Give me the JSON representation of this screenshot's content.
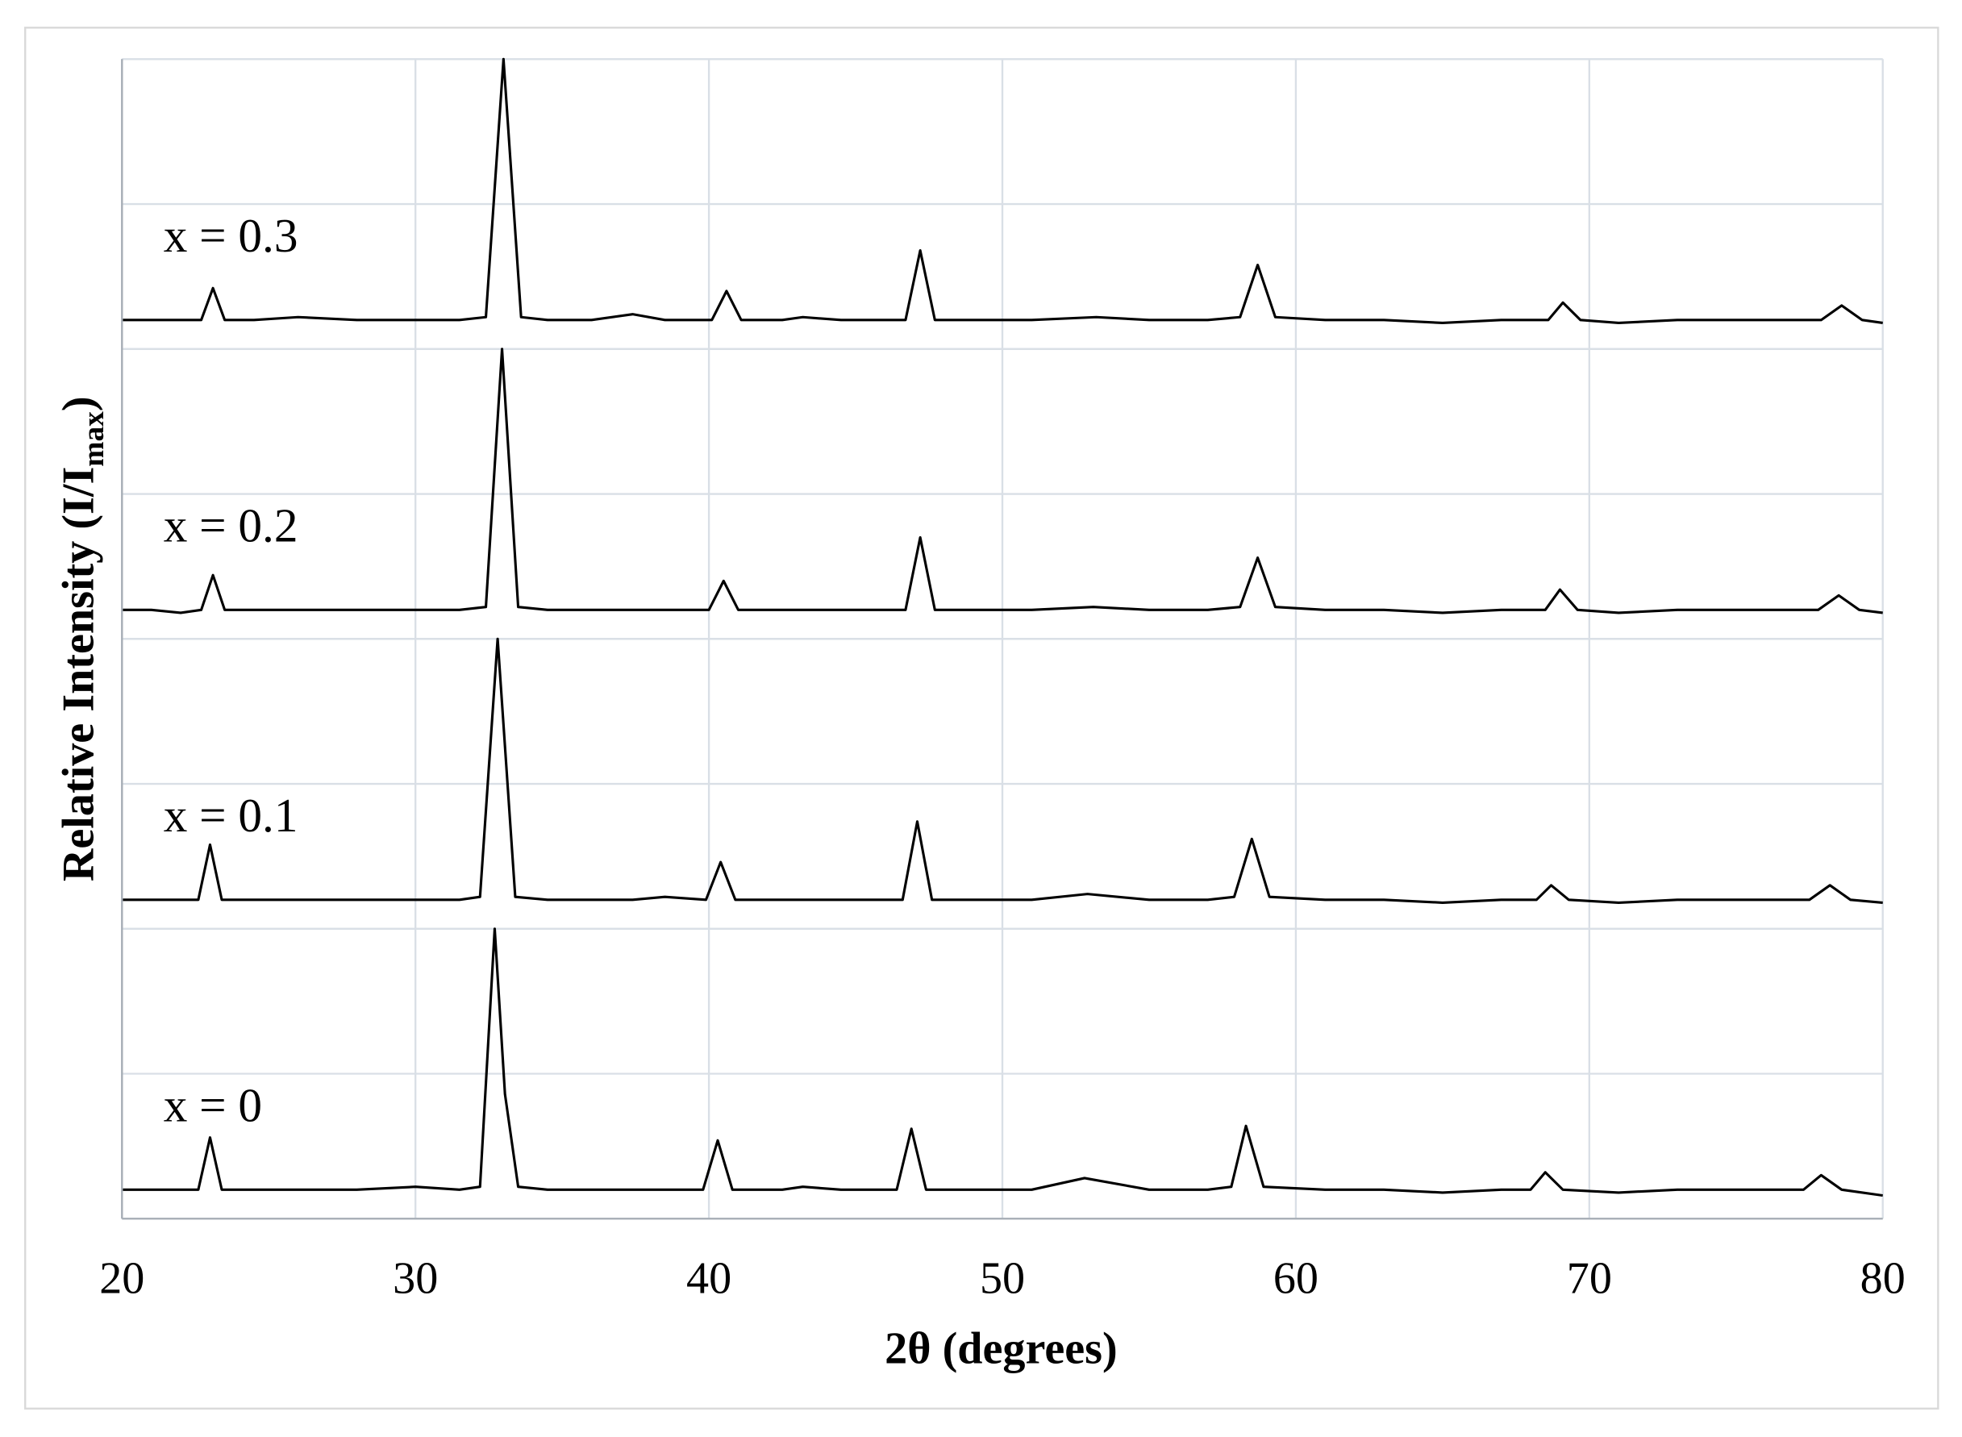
{
  "chart_data": [
    {
      "type": "line",
      "annotation": "x = 0.3",
      "color": "#000000",
      "xlim": [
        20,
        80
      ],
      "ylim": [
        0,
        1
      ],
      "yticks": [
        0,
        0.5,
        1
      ],
      "grid": true,
      "x": [
        20,
        21,
        22,
        22.7,
        23.1,
        23.5,
        24.5,
        26,
        28,
        30,
        31.5,
        32.4,
        33.0,
        33.6,
        34.5,
        36,
        37.4,
        38.5,
        40.1,
        40.6,
        41.1,
        42.5,
        43.2,
        44.5,
        46.7,
        47.2,
        47.7,
        49,
        51,
        53.2,
        55,
        57,
        58.1,
        58.7,
        59.3,
        61,
        63,
        65,
        67,
        68.6,
        69.1,
        69.7,
        71,
        73,
        75,
        77.9,
        78.6,
        79.3,
        80
      ],
      "values": [
        0.1,
        0.1,
        0.1,
        0.1,
        0.21,
        0.1,
        0.1,
        0.11,
        0.1,
        0.1,
        0.1,
        0.11,
        1.0,
        0.11,
        0.1,
        0.1,
        0.12,
        0.1,
        0.1,
        0.2,
        0.1,
        0.1,
        0.11,
        0.1,
        0.1,
        0.34,
        0.1,
        0.1,
        0.1,
        0.11,
        0.1,
        0.1,
        0.11,
        0.29,
        0.11,
        0.1,
        0.1,
        0.09,
        0.1,
        0.1,
        0.16,
        0.1,
        0.09,
        0.1,
        0.1,
        0.1,
        0.15,
        0.1,
        0.09
      ]
    },
    {
      "type": "line",
      "annotation": "x = 0.2",
      "color": "#000000",
      "xlim": [
        20,
        80
      ],
      "ylim": [
        0,
        1
      ],
      "yticks": [
        0,
        0.5,
        1
      ],
      "grid": true,
      "x": [
        20,
        21,
        22,
        22.7,
        23.1,
        23.5,
        24.5,
        26,
        28,
        30,
        31.5,
        32.4,
        32.95,
        33.5,
        34.5,
        36,
        37.4,
        38.5,
        40.0,
        40.5,
        41.0,
        42.5,
        43.2,
        44.5,
        46.7,
        47.2,
        47.7,
        49,
        51,
        53.1,
        55,
        57,
        58.1,
        58.7,
        59.3,
        61,
        63,
        65,
        67,
        68.5,
        69.0,
        69.6,
        71,
        73,
        75,
        77.8,
        78.5,
        79.2,
        80
      ],
      "values": [
        0.1,
        0.1,
        0.09,
        0.1,
        0.22,
        0.1,
        0.1,
        0.1,
        0.1,
        0.1,
        0.1,
        0.11,
        1.0,
        0.11,
        0.1,
        0.1,
        0.1,
        0.1,
        0.1,
        0.2,
        0.1,
        0.1,
        0.1,
        0.1,
        0.1,
        0.35,
        0.1,
        0.1,
        0.1,
        0.11,
        0.1,
        0.1,
        0.11,
        0.28,
        0.11,
        0.1,
        0.1,
        0.09,
        0.1,
        0.1,
        0.17,
        0.1,
        0.09,
        0.1,
        0.1,
        0.1,
        0.15,
        0.1,
        0.09
      ]
    },
    {
      "type": "line",
      "annotation": "x = 0.1",
      "color": "#000000",
      "xlim": [
        20,
        80
      ],
      "ylim": [
        0,
        1
      ],
      "yticks": [
        0,
        0.5,
        1
      ],
      "grid": true,
      "x": [
        20,
        21,
        22,
        22.6,
        23.0,
        23.4,
        24.5,
        26,
        28,
        30,
        31.5,
        32.2,
        32.8,
        33.4,
        34.5,
        36,
        37.4,
        38.5,
        39.9,
        40.4,
        40.9,
        42.5,
        43.2,
        44.5,
        46.6,
        47.1,
        47.6,
        49,
        51,
        52.9,
        55,
        57,
        57.9,
        58.5,
        59.1,
        61,
        63,
        65,
        67,
        68.2,
        68.7,
        69.3,
        71,
        73,
        75,
        77.5,
        78.2,
        78.9,
        80
      ],
      "values": [
        0.1,
        0.1,
        0.1,
        0.1,
        0.29,
        0.1,
        0.1,
        0.1,
        0.1,
        0.1,
        0.1,
        0.11,
        1.0,
        0.11,
        0.1,
        0.1,
        0.1,
        0.11,
        0.1,
        0.23,
        0.1,
        0.1,
        0.1,
        0.1,
        0.1,
        0.37,
        0.1,
        0.1,
        0.1,
        0.12,
        0.1,
        0.1,
        0.11,
        0.31,
        0.11,
        0.1,
        0.1,
        0.09,
        0.1,
        0.1,
        0.15,
        0.1,
        0.09,
        0.1,
        0.1,
        0.1,
        0.15,
        0.1,
        0.09
      ]
    },
    {
      "type": "line",
      "annotation": "x = 0",
      "color": "#000000",
      "xlim": [
        20,
        80
      ],
      "ylim": [
        0,
        1
      ],
      "yticks": [
        0,
        0.5,
        1
      ],
      "grid": true,
      "xticks": [
        20,
        30,
        40,
        50,
        60,
        70,
        80
      ],
      "xlabel": "2θ (degrees)",
      "ylabel": [
        "Relative Intensity (I/I",
        "max",
        ")"
      ],
      "x": [
        20,
        21,
        22,
        22.6,
        23.0,
        23.4,
        24.5,
        26,
        28,
        30,
        31.5,
        32.2,
        32.7,
        33.05,
        33.5,
        34.5,
        36,
        38.5,
        39.8,
        40.3,
        40.8,
        42.5,
        43.2,
        44.5,
        46.4,
        46.9,
        47.4,
        49,
        51,
        52.8,
        55,
        57,
        57.8,
        58.3,
        58.9,
        61,
        63,
        65,
        67,
        68.0,
        68.5,
        69.1,
        71,
        73,
        75,
        77.3,
        77.9,
        78.6,
        80
      ],
      "values": [
        0.1,
        0.1,
        0.1,
        0.1,
        0.28,
        0.1,
        0.1,
        0.1,
        0.1,
        0.11,
        0.1,
        0.11,
        1.0,
        0.43,
        0.11,
        0.1,
        0.1,
        0.1,
        0.1,
        0.27,
        0.1,
        0.1,
        0.11,
        0.1,
        0.1,
        0.31,
        0.1,
        0.1,
        0.1,
        0.14,
        0.1,
        0.1,
        0.11,
        0.32,
        0.11,
        0.1,
        0.1,
        0.09,
        0.1,
        0.1,
        0.16,
        0.1,
        0.09,
        0.1,
        0.1,
        0.1,
        0.15,
        0.1,
        0.08
      ]
    }
  ]
}
